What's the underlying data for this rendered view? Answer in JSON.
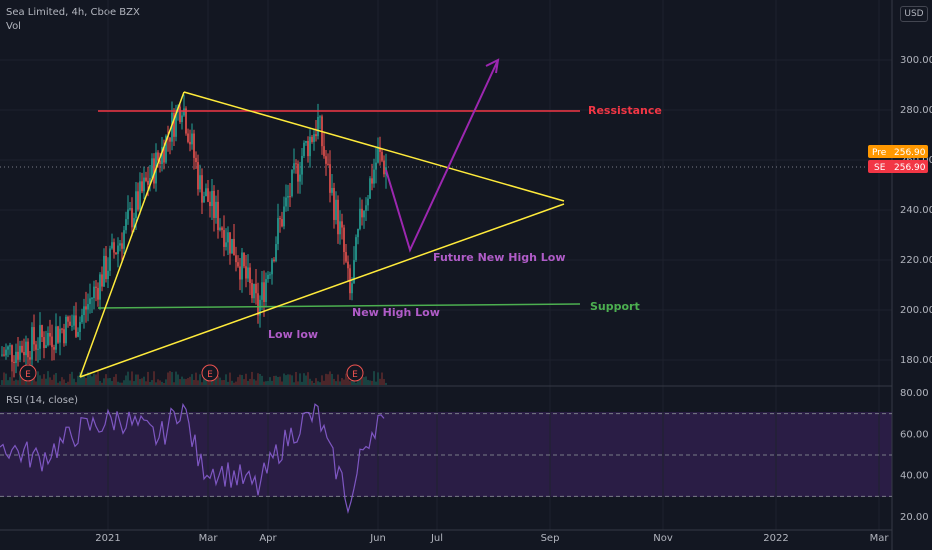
{
  "header": {
    "symbol": "Sea Limited, 4h, Cboe BZX",
    "volume_label": "Vol",
    "rsi_label": "RSI (14, close)",
    "currency": "USD"
  },
  "price_axis": {
    "labels": [
      "300.00",
      "280.00",
      "260.00",
      "240.00",
      "220.00",
      "200.00",
      "180.00"
    ]
  },
  "rsi_axis": {
    "labels": [
      "80.00",
      "60.00",
      "40.00",
      "20.00"
    ]
  },
  "time_axis": {
    "labels": [
      "2021",
      "Mar",
      "Apr",
      "Jun",
      "Jul",
      "Sep",
      "Nov",
      "2022",
      "Mar"
    ]
  },
  "badges": {
    "pre_tag": "Pre",
    "pre_value": "256.90",
    "se_tag": "SE",
    "se_value": "256.90"
  },
  "annotations": {
    "resistance": "Ressistance",
    "support": "Support",
    "future": "Future New High Low",
    "new_high_low": "New High Low",
    "low_low": "Low low"
  },
  "earnings_marker": "E",
  "colors": {
    "background": "#131722",
    "resistance": "#f23645",
    "support": "#4caf50",
    "triangle": "#ffeb3b",
    "projection": "#9c27b0",
    "rsi": "#7e57c2",
    "pre_badge": "#ff9800",
    "se_badge": "#f23645"
  },
  "chart_data": [
    {
      "type": "line",
      "title": "",
      "xlabel": "",
      "ylabel": "",
      "ylim": [
        170,
        310
      ],
      "x": [
        "2020-11-20",
        "2020-12-10",
        "2020-12-28",
        "2021-01-20",
        "2021-02-05",
        "2021-02-16",
        "2021-02-25",
        "2021-03-10",
        "2021-03-25",
        "2021-04-08",
        "2021-04-20",
        "2021-04-28",
        "2021-05-05",
        "2021-05-13",
        "2021-05-20",
        "2021-05-28",
        "2021-06-04",
        "2021-06-08"
      ],
      "series": [
        {
          "values": [
            182,
            188,
            196,
            228,
            262,
            284,
            250,
            224,
            200,
            232,
            262,
            275,
            250,
            228,
            205,
            240,
            262,
            256.9
          ]
        }
      ]
    },
    {
      "type": "line",
      "title": "",
      "ylim": [
        20,
        80
      ],
      "x": [
        "2020-11-20",
        "2020-12-10",
        "2020-12-28",
        "2021-01-20",
        "2021-02-05",
        "2021-02-16",
        "2021-02-25",
        "2021-03-10",
        "2021-03-25",
        "2021-04-08",
        "2021-04-20",
        "2021-04-28",
        "2021-05-05",
        "2021-05-13",
        "2021-05-20",
        "2021-05-28",
        "2021-06-04",
        "2021-06-08"
      ],
      "series": [
        {
          "values": [
            55,
            48,
            62,
            68,
            58,
            75,
            45,
            40,
            34,
            52,
            66,
            70,
            50,
            38,
            24,
            52,
            68,
            60
          ]
        }
      ]
    }
  ]
}
